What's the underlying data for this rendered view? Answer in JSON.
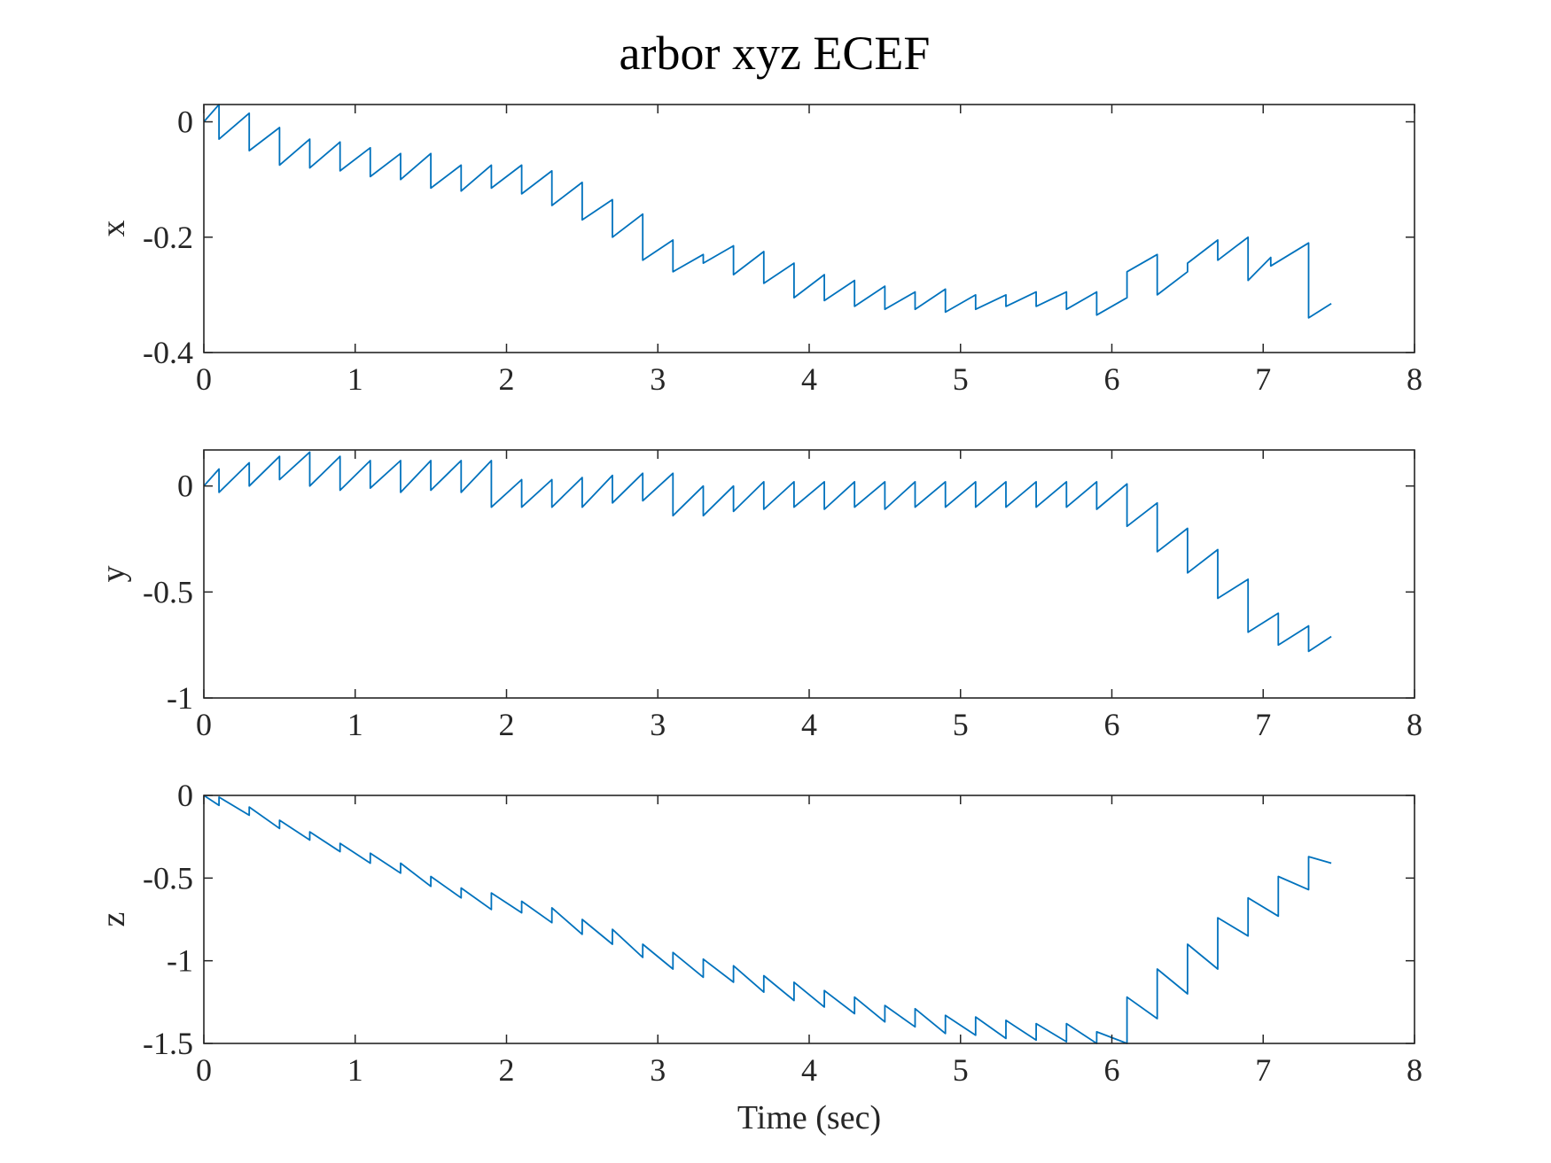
{
  "figure": {
    "title": "arbor xyz ECEF"
  },
  "style": {
    "line_color": "#0072bd",
    "axes_color": "#262626"
  },
  "chart_data": [
    {
      "type": "line",
      "ylabel": "x",
      "xlabel": "",
      "xlim": [
        0,
        8
      ],
      "ylim": [
        -0.4,
        0.03
      ],
      "xticks": [
        "0",
        "1",
        "2",
        "3",
        "4",
        "5",
        "6",
        "7",
        "8"
      ],
      "yticks": [
        {
          "v": 0,
          "label": "0"
        },
        {
          "v": -0.2,
          "label": "-0.2"
        },
        {
          "v": -0.4,
          "label": "-0.4"
        }
      ],
      "grid": false,
      "series": [
        {
          "x": [
            0,
            0.1,
            0.1,
            0.3,
            0.3,
            0.5,
            0.5,
            0.7,
            0.7,
            0.9,
            0.9,
            1.1,
            1.1,
            1.3,
            1.3,
            1.5,
            1.5,
            1.7,
            1.7,
            1.9,
            1.9,
            2.1,
            2.1,
            2.3,
            2.3,
            2.5,
            2.5,
            2.7,
            2.7,
            2.9,
            2.9,
            3.1,
            3.1,
            3.3,
            3.3,
            3.5,
            3.5,
            3.7,
            3.7,
            3.9,
            3.9,
            4.1,
            4.1,
            4.3,
            4.3,
            4.5,
            4.5,
            4.7,
            4.7,
            4.9,
            4.9,
            5.1,
            5.1,
            5.3,
            5.3,
            5.5,
            5.5,
            5.7,
            5.7,
            5.9,
            5.9,
            6.1,
            6.1,
            6.3,
            6.3,
            6.5,
            6.5,
            6.7,
            6.7,
            6.9,
            6.9,
            7.05,
            7.05,
            7.3,
            7.3,
            7.45
          ],
          "y": [
            0,
            0.03,
            -0.03,
            0.015,
            -0.05,
            -0.01,
            -0.075,
            -0.03,
            -0.08,
            -0.035,
            -0.085,
            -0.045,
            -0.095,
            -0.055,
            -0.1,
            -0.055,
            -0.115,
            -0.075,
            -0.12,
            -0.075,
            -0.115,
            -0.075,
            -0.125,
            -0.085,
            -0.145,
            -0.105,
            -0.17,
            -0.135,
            -0.2,
            -0.16,
            -0.24,
            -0.205,
            -0.26,
            -0.23,
            -0.245,
            -0.215,
            -0.265,
            -0.225,
            -0.28,
            -0.245,
            -0.305,
            -0.265,
            -0.31,
            -0.275,
            -0.32,
            -0.285,
            -0.325,
            -0.295,
            -0.325,
            -0.29,
            -0.33,
            -0.3,
            -0.325,
            -0.3,
            -0.32,
            -0.295,
            -0.32,
            -0.295,
            -0.325,
            -0.295,
            -0.335,
            -0.305,
            -0.26,
            -0.23,
            -0.3,
            -0.26,
            -0.245,
            -0.205,
            -0.24,
            -0.2,
            -0.275,
            -0.235,
            -0.25,
            -0.21,
            -0.34,
            -0.315
          ]
        }
      ]
    },
    {
      "type": "line",
      "ylabel": "y",
      "xlabel": "",
      "xlim": [
        0,
        8
      ],
      "ylim": [
        -1,
        0.17
      ],
      "xticks": [
        "0",
        "1",
        "2",
        "3",
        "4",
        "5",
        "6",
        "7",
        "8"
      ],
      "yticks": [
        {
          "v": 0,
          "label": "0"
        },
        {
          "v": -0.5,
          "label": "-0.5"
        },
        {
          "v": -1,
          "label": "-1"
        }
      ],
      "grid": false,
      "series": [
        {
          "x": [
            0,
            0.1,
            0.1,
            0.3,
            0.3,
            0.5,
            0.5,
            0.7,
            0.7,
            0.9,
            0.9,
            1.1,
            1.1,
            1.3,
            1.3,
            1.5,
            1.5,
            1.7,
            1.7,
            1.9,
            1.9,
            2.1,
            2.1,
            2.3,
            2.3,
            2.5,
            2.5,
            2.7,
            2.7,
            2.9,
            2.9,
            3.1,
            3.1,
            3.3,
            3.3,
            3.5,
            3.5,
            3.7,
            3.7,
            3.9,
            3.9,
            4.1,
            4.1,
            4.3,
            4.3,
            4.5,
            4.5,
            4.7,
            4.7,
            4.9,
            4.9,
            5.1,
            5.1,
            5.3,
            5.3,
            5.5,
            5.5,
            5.7,
            5.7,
            5.9,
            5.9,
            6.1,
            6.1,
            6.3,
            6.3,
            6.5,
            6.5,
            6.7,
            6.7,
            6.9,
            6.9,
            7.1,
            7.1,
            7.3,
            7.3,
            7.45
          ],
          "y": [
            0,
            0.08,
            -0.03,
            0.11,
            0,
            0.14,
            0.03,
            0.16,
            0,
            0.14,
            -0.02,
            0.12,
            -0.01,
            0.12,
            -0.03,
            0.12,
            -0.02,
            0.12,
            -0.03,
            0.12,
            -0.1,
            0.03,
            -0.1,
            0.03,
            -0.1,
            0.04,
            -0.1,
            0.05,
            -0.08,
            0.06,
            -0.07,
            0.06,
            -0.14,
            0,
            -0.14,
            0,
            -0.12,
            0.02,
            -0.11,
            0.02,
            -0.1,
            0.02,
            -0.11,
            0.02,
            -0.1,
            0.02,
            -0.11,
            0.02,
            -0.1,
            0.02,
            -0.1,
            0.02,
            -0.1,
            0.02,
            -0.1,
            0.02,
            -0.1,
            0.02,
            -0.1,
            0.02,
            -0.11,
            0.01,
            -0.19,
            -0.08,
            -0.31,
            -0.2,
            -0.41,
            -0.3,
            -0.53,
            -0.44,
            -0.69,
            -0.6,
            -0.75,
            -0.66,
            -0.78,
            -0.71
          ]
        }
      ]
    },
    {
      "type": "line",
      "ylabel": "z",
      "xlabel": "Time (sec)",
      "xlim": [
        0,
        8
      ],
      "ylim": [
        -1.5,
        0
      ],
      "xticks": [
        "0",
        "1",
        "2",
        "3",
        "4",
        "5",
        "6",
        "7",
        "8"
      ],
      "yticks": [
        {
          "v": 0,
          "label": "0"
        },
        {
          "v": -0.5,
          "label": "-0.5"
        },
        {
          "v": -1,
          "label": "-1"
        },
        {
          "v": -1.5,
          "label": "-1.5"
        }
      ],
      "grid": false,
      "series": [
        {
          "x": [
            0,
            0.1,
            0.1,
            0.3,
            0.3,
            0.5,
            0.5,
            0.7,
            0.7,
            0.9,
            0.9,
            1.1,
            1.1,
            1.3,
            1.3,
            1.5,
            1.5,
            1.7,
            1.7,
            1.9,
            1.9,
            2.1,
            2.1,
            2.3,
            2.3,
            2.5,
            2.5,
            2.7,
            2.7,
            2.9,
            2.9,
            3.1,
            3.1,
            3.3,
            3.3,
            3.5,
            3.5,
            3.7,
            3.7,
            3.9,
            3.9,
            4.1,
            4.1,
            4.3,
            4.3,
            4.5,
            4.5,
            4.7,
            4.7,
            4.9,
            4.9,
            5.1,
            5.1,
            5.3,
            5.3,
            5.5,
            5.5,
            5.7,
            5.7,
            5.9,
            5.9,
            6.1,
            6.1,
            6.3,
            6.3,
            6.5,
            6.5,
            6.7,
            6.7,
            6.9,
            6.9,
            7.1,
            7.1,
            7.3,
            7.3,
            7.45
          ],
          "y": [
            0,
            -0.06,
            -0.01,
            -0.12,
            -0.07,
            -0.2,
            -0.15,
            -0.27,
            -0.22,
            -0.34,
            -0.29,
            -0.41,
            -0.35,
            -0.47,
            -0.41,
            -0.55,
            -0.49,
            -0.62,
            -0.56,
            -0.69,
            -0.59,
            -0.71,
            -0.64,
            -0.77,
            -0.68,
            -0.84,
            -0.75,
            -0.9,
            -0.81,
            -0.98,
            -0.9,
            -1.05,
            -0.95,
            -1.1,
            -0.99,
            -1.13,
            -1.03,
            -1.19,
            -1.09,
            -1.24,
            -1.13,
            -1.28,
            -1.18,
            -1.32,
            -1.22,
            -1.37,
            -1.27,
            -1.4,
            -1.29,
            -1.44,
            -1.33,
            -1.45,
            -1.34,
            -1.47,
            -1.36,
            -1.48,
            -1.38,
            -1.49,
            -1.38,
            -1.5,
            -1.43,
            -1.5,
            -1.22,
            -1.35,
            -1.05,
            -1.2,
            -0.9,
            -1.05,
            -0.74,
            -0.85,
            -0.62,
            -0.73,
            -0.49,
            -0.57,
            -0.37,
            -0.41
          ]
        }
      ]
    }
  ]
}
